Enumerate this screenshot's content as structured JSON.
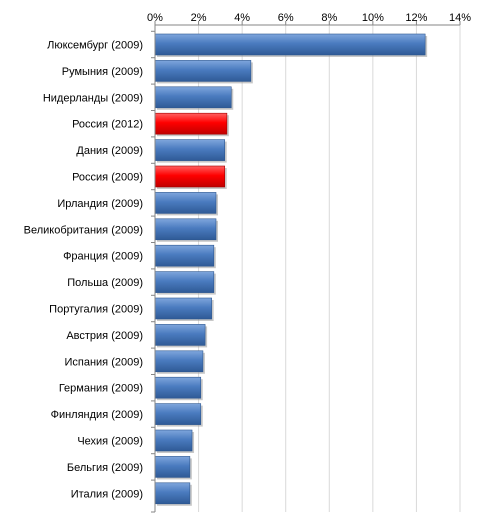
{
  "chart_data": {
    "type": "bar",
    "orientation": "horizontal",
    "title": "",
    "xlabel": "",
    "ylabel": "",
    "xlim": [
      0,
      14
    ],
    "x_ticks": [
      "0%",
      "2%",
      "4%",
      "6%",
      "8%",
      "10%",
      "12%",
      "14%"
    ],
    "x_axis_position": "top",
    "grid": "vertical",
    "legend": "none",
    "categories": [
      "Люксембург (2009)",
      "Румыния (2009)",
      "Нидерланды (2009)",
      "Россия (2012)",
      "Дания (2009)",
      "Россия (2009)",
      "Ирландия (2009)",
      "Великобритания (2009)",
      "Франция (2009)",
      "Польша (2009)",
      "Португалия (2009)",
      "Австрия (2009)",
      "Испания (2009)",
      "Германия (2009)",
      "Финляндия (2009)",
      "Чехия (2009)",
      "Бельгия (2009)",
      "Италия (2009)"
    ],
    "values": [
      12.4,
      4.4,
      3.5,
      3.3,
      3.2,
      3.2,
      2.8,
      2.8,
      2.7,
      2.7,
      2.6,
      2.3,
      2.2,
      2.1,
      2.1,
      1.7,
      1.6,
      1.6
    ],
    "bar_colors": [
      "#4a7bbf",
      "#4a7bbf",
      "#4a7bbf",
      "#ff0000",
      "#4a7bbf",
      "#ff0000",
      "#4a7bbf",
      "#4a7bbf",
      "#4a7bbf",
      "#4a7bbf",
      "#4a7bbf",
      "#4a7bbf",
      "#4a7bbf",
      "#4a7bbf",
      "#4a7bbf",
      "#4a7bbf",
      "#4a7bbf",
      "#4a7bbf"
    ]
  },
  "colors": {
    "bar_default": "#4a7bbf",
    "bar_highlight": "#ff0000",
    "grid": "#d9d9d9",
    "axis": "#868686"
  }
}
